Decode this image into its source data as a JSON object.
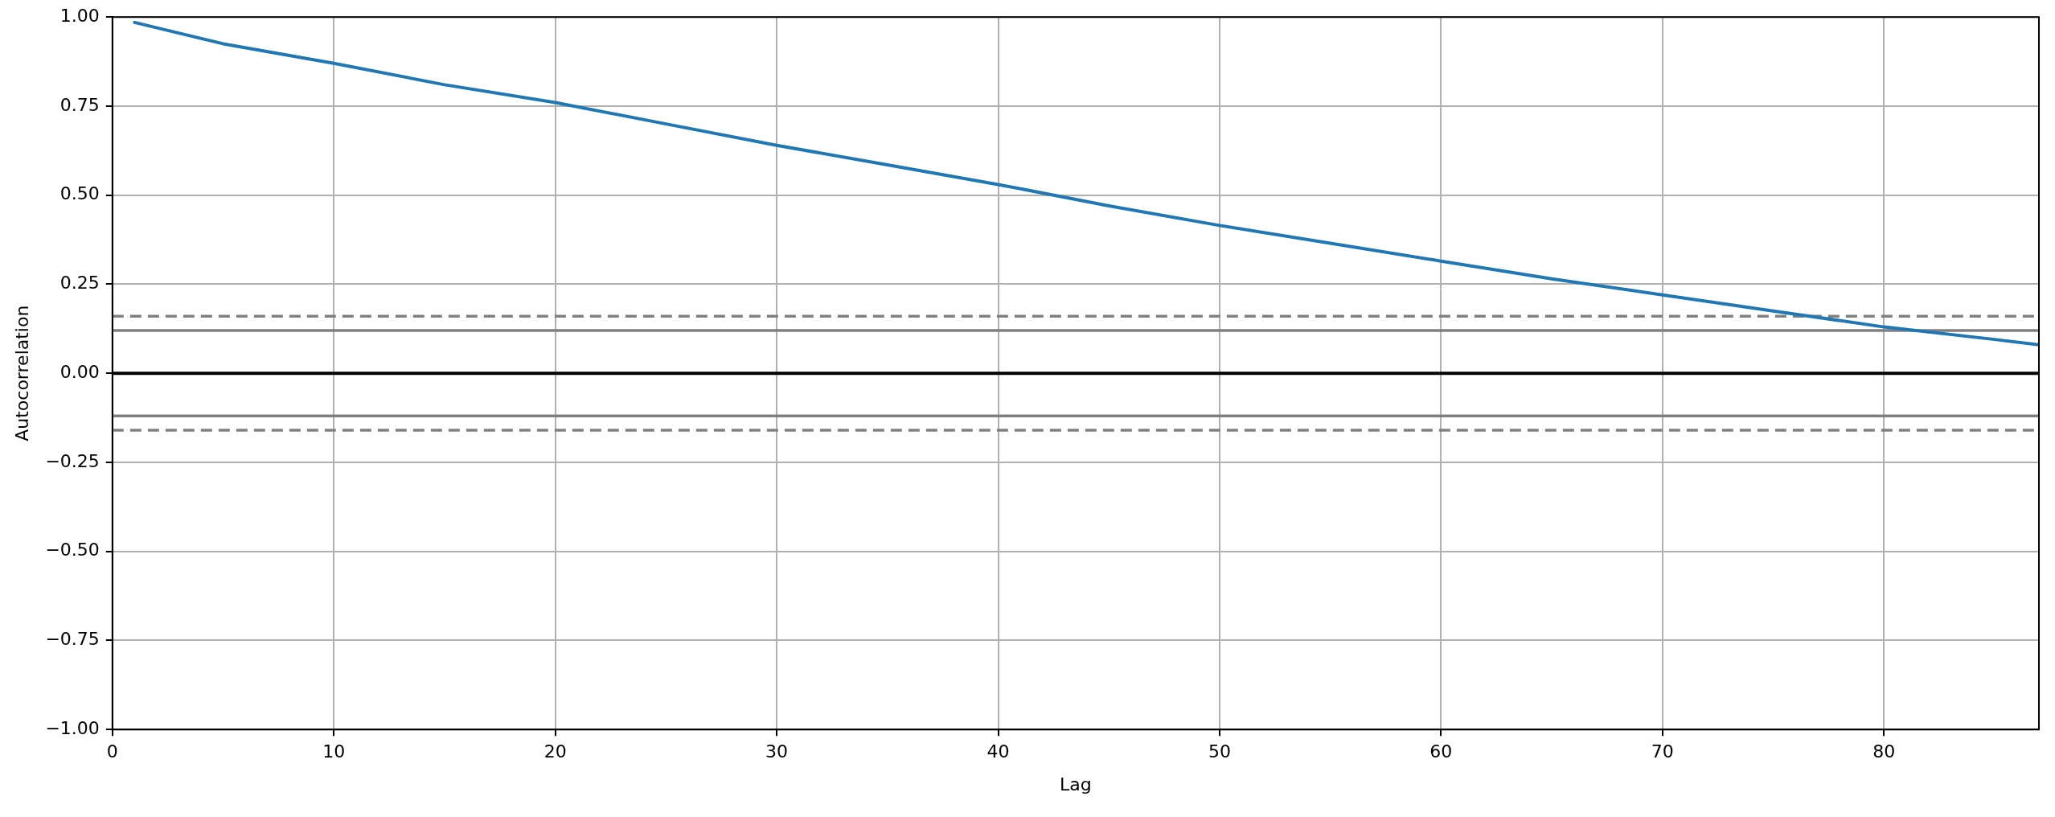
{
  "chart_data": {
    "type": "line",
    "xlabel": "Lag",
    "ylabel": "Autocorrelation",
    "series": [
      {
        "color": "#1f77b4",
        "x": [
          1,
          5,
          10,
          15,
          20,
          25,
          30,
          35,
          40,
          45,
          50,
          55,
          60,
          65,
          70,
          75,
          80,
          85,
          87
        ],
        "values": [
          0.985,
          0.925,
          0.87,
          0.81,
          0.76,
          0.7,
          0.64,
          0.585,
          0.53,
          0.47,
          0.415,
          0.365,
          0.315,
          0.265,
          0.22,
          0.175,
          0.13,
          0.095,
          0.08
        ]
      }
    ],
    "xlim": [
      0,
      87
    ],
    "xticks": [
      0,
      10,
      20,
      30,
      40,
      50,
      60,
      70,
      80
    ],
    "ylim": [
      -1,
      1
    ],
    "yticks": [
      {
        "value": -1,
        "label": "−1.00"
      },
      {
        "value": -0.75,
        "label": "−0.75"
      },
      {
        "value": -0.5,
        "label": "−0.50"
      },
      {
        "value": -0.25,
        "label": "−0.25"
      },
      {
        "value": 0,
        "label": "0.00"
      },
      {
        "value": 0.25,
        "label": "0.25"
      },
      {
        "value": 0.5,
        "label": "0.50"
      },
      {
        "value": 0.75,
        "label": "0.75"
      },
      {
        "value": 1,
        "label": "1.00"
      }
    ],
    "grid": true,
    "legend": false,
    "marker": "none",
    "line_style": "solid",
    "ref_lines": [
      {
        "axis": "y",
        "value": 0.16,
        "color": "#808080",
        "line_style": "dashed"
      },
      {
        "axis": "y",
        "value": 0.12,
        "color": "#808080",
        "line_style": "solid"
      },
      {
        "axis": "y",
        "value": 0,
        "color": "#000000",
        "line_style": "solid"
      },
      {
        "axis": "y",
        "value": -0.12,
        "color": "#808080",
        "line_style": "solid"
      },
      {
        "axis": "y",
        "value": -0.16,
        "color": "#808080",
        "line_style": "dashed"
      }
    ]
  }
}
